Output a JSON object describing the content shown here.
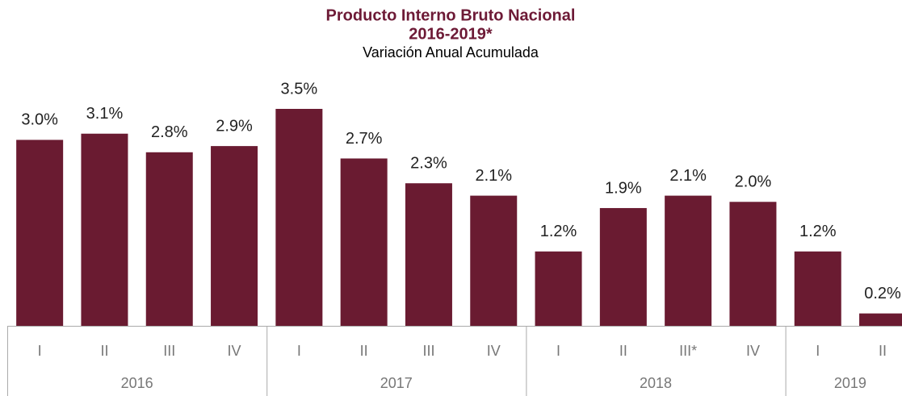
{
  "chart_data": {
    "type": "bar",
    "title": [
      "Producto Interno Bruto Nacional",
      "2016-2019*"
    ],
    "subtitle": "Variación Anual Acumulada",
    "color": "#6a1b31",
    "groups": [
      {
        "name": "2016",
        "categories": [
          "I",
          "II",
          "III",
          "IV"
        ],
        "values": [
          3.0,
          3.1,
          2.8,
          2.9
        ],
        "value_labels": [
          "3.0%",
          "3.1%",
          "2.8%",
          "2.9%"
        ]
      },
      {
        "name": "2017",
        "categories": [
          "I",
          "II",
          "III",
          "IV"
        ],
        "values": [
          3.5,
          2.7,
          2.3,
          2.1
        ],
        "value_labels": [
          "3.5%",
          "2.7%",
          "2.3%",
          "2.1%"
        ]
      },
      {
        "name": "2018",
        "categories": [
          "I",
          "II",
          "III*",
          "IV"
        ],
        "values": [
          1.2,
          1.9,
          2.1,
          2.0
        ],
        "value_labels": [
          "1.2%",
          "1.9%",
          "2.1%",
          "2.0%"
        ]
      },
      {
        "name": "2019",
        "categories": [
          "I",
          "II"
        ],
        "values": [
          1.2,
          0.2
        ],
        "value_labels": [
          "1.2%",
          "0.2%"
        ]
      }
    ]
  }
}
